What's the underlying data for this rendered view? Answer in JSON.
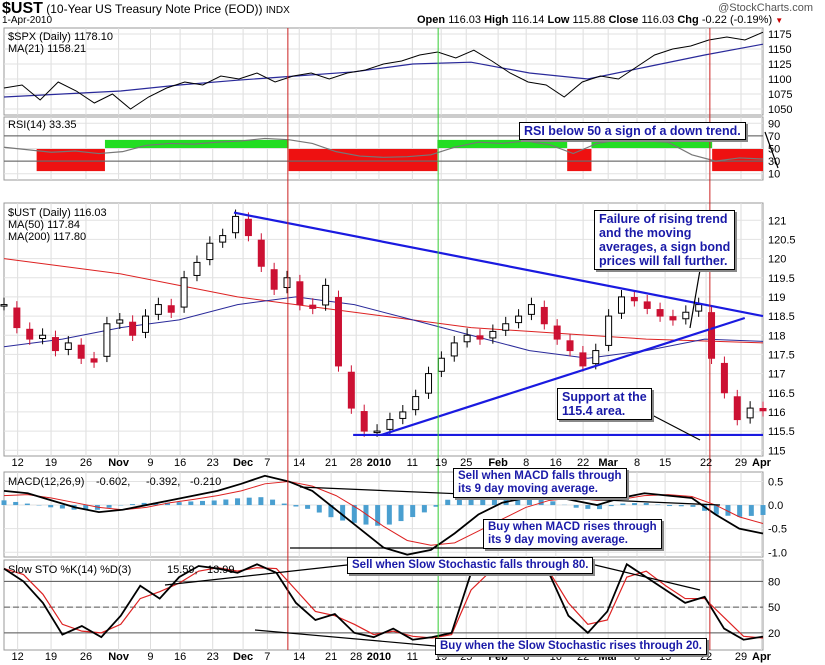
{
  "header": {
    "symbol": "$UST",
    "description": "(10-Year US Treasury Note Price (EOD))",
    "exchange": "INDX",
    "date": "1-Apr-2010",
    "watermark": "@StockCharts.com",
    "open_label": "Open",
    "open": "116.03",
    "high_label": "High",
    "high": "116.14",
    "low_label": "Low",
    "low": "115.88",
    "close_label": "Close",
    "close": "116.03",
    "chg_label": "Chg",
    "chg": "-0.22 (-0.19%)"
  },
  "colors": {
    "up": "#000000",
    "down": "#cc1133",
    "ma50": "#2a2a9a",
    "ma200": "#dd2222",
    "trend": "#1a1ae0",
    "rsi_up": "#22dd22",
    "rsi_down": "#ee1111",
    "macd_hist": "#4a9fd0",
    "vline_red": "#cc2222",
    "vline_green": "#33cc33"
  },
  "chart_data": [
    {
      "type": "line",
      "panel": "spx",
      "legend": [
        "$SPX (Daily) 1178.10",
        "MA(21) 1158.21"
      ],
      "yticks": [
        1175,
        1150,
        1125,
        1100,
        1075,
        1050
      ],
      "ylim": [
        1040,
        1185
      ],
      "series": [
        {
          "name": "$SPX",
          "values": [
            1085,
            1090,
            1065,
            1095,
            1080,
            1060,
            1075,
            1050,
            1070,
            1085,
            1095,
            1090,
            1105,
            1100,
            1110,
            1095,
            1105,
            1110,
            1100,
            1110,
            1115,
            1125,
            1130,
            1140,
            1145,
            1135,
            1148,
            1130,
            1110,
            1095,
            1090,
            1070,
            1095,
            1105,
            1100,
            1120,
            1140,
            1150,
            1155,
            1165,
            1170,
            1165,
            1178
          ]
        },
        {
          "name": "MA(21)",
          "values": [
            1070,
            1075,
            1080,
            1090,
            1098,
            1105,
            1112,
            1125,
            1128,
            1110,
            1100,
            1120,
            1140,
            1158
          ]
        }
      ]
    },
    {
      "type": "line",
      "panel": "rsi",
      "legend": "RSI(14) 33.35",
      "yticks": [
        90,
        70,
        50,
        30,
        10
      ],
      "ylim": [
        0,
        100
      ],
      "bands": [
        {
          "state": "down",
          "from": 0.043,
          "to": 0.133
        },
        {
          "state": "up",
          "from": 0.133,
          "to": 0.375
        },
        {
          "state": "down",
          "from": 0.375,
          "to": 0.571
        },
        {
          "state": "up",
          "from": 0.571,
          "to": 0.742
        },
        {
          "state": "down",
          "from": 0.742,
          "to": 0.774
        },
        {
          "state": "up",
          "from": 0.774,
          "to": 0.933
        },
        {
          "state": "down",
          "from": 0.933,
          "to": 1
        }
      ],
      "values": [
        52,
        48,
        44,
        46,
        42,
        45,
        55,
        58,
        57,
        60,
        62,
        66,
        64,
        58,
        45,
        38,
        36,
        37,
        40,
        52,
        60,
        58,
        62,
        56,
        42,
        58,
        64,
        62,
        60,
        40,
        30,
        35,
        33.35
      ]
    },
    {
      "type": "candlestick",
      "panel": "price",
      "legend": [
        "$UST (Daily) 116.03",
        "MA(50) 117.84",
        "MA(200) 117.80"
      ],
      "yticks": [
        121.0,
        120.5,
        120.0,
        119.5,
        119.0,
        118.5,
        118.0,
        117.5,
        117.0,
        116.5,
        116.0,
        115.5,
        115.0
      ],
      "ylim": [
        114.85,
        121.45
      ],
      "closes": [
        118.8,
        118.2,
        117.9,
        118.0,
        117.6,
        117.8,
        117.4,
        117.3,
        118.3,
        118.4,
        118.0,
        118.5,
        118.8,
        118.6,
        119.5,
        119.9,
        120.4,
        120.6,
        121.1,
        120.6,
        119.8,
        119.2,
        119.5,
        118.8,
        118.7,
        119.3,
        117.2,
        116.1,
        115.5,
        115.5,
        115.8,
        116.0,
        116.4,
        117.0,
        117.4,
        117.8,
        118.0,
        117.9,
        118.1,
        118.3,
        118.5,
        118.8,
        118.3,
        117.9,
        117.6,
        117.2,
        117.6,
        118.5,
        119.0,
        118.9,
        118.7,
        118.5,
        118.4,
        118.6,
        118.8,
        117.4,
        116.5,
        115.8,
        116.1,
        116.03
      ],
      "ma50": [
        117.7,
        117.9,
        118.2,
        118.4,
        118.8,
        119.0,
        118.8,
        118.4,
        118.0,
        117.6,
        117.4,
        117.6,
        117.9,
        117.84
      ],
      "ma200": [
        120.0,
        119.8,
        119.6,
        119.3,
        119.0,
        118.8,
        118.6,
        118.4,
        118.2,
        118.1,
        118.0,
        117.9,
        117.85,
        117.8
      ],
      "trendlines": [
        {
          "name": "falling-resistance",
          "from": [
            0.303,
            121.2
          ],
          "to": [
            1.0,
            118.5
          ]
        },
        {
          "name": "rising-support",
          "from": [
            0.497,
            115.4
          ],
          "to": [
            0.976,
            118.45
          ]
        },
        {
          "name": "support-115.4",
          "from": [
            0.46,
            115.4
          ],
          "to": [
            1.0,
            115.4
          ]
        }
      ]
    },
    {
      "type": "line",
      "panel": "macd",
      "legend": {
        "label": "MACD(12,26,9)",
        "macd": "-0.602,",
        "signal": "-0.392,",
        "hist": "-0.210"
      },
      "yticks": [
        "0.5",
        "0.0",
        "-0.5",
        "-1.0"
      ],
      "ylim": [
        -1.1,
        0.7
      ],
      "macd": [
        0.3,
        0.25,
        0.1,
        -0.05,
        -0.15,
        -0.1,
        0.0,
        0.1,
        0.2,
        0.3,
        0.45,
        0.62,
        0.5,
        0.3,
        -0.1,
        -0.5,
        -0.9,
        -1.05,
        -0.95,
        -0.6,
        -0.2,
        0.05,
        0.15,
        0.2,
        0.1,
        0.0,
        0.15,
        0.25,
        0.2,
        0.15,
        -0.2,
        -0.5,
        -0.602
      ],
      "signal": [
        0.2,
        0.22,
        0.15,
        0.05,
        -0.05,
        -0.1,
        -0.05,
        0.05,
        0.12,
        0.2,
        0.3,
        0.45,
        0.5,
        0.4,
        0.2,
        -0.1,
        -0.45,
        -0.75,
        -0.85,
        -0.8,
        -0.55,
        -0.3,
        -0.05,
        0.1,
        0.15,
        0.1,
        0.12,
        0.2,
        0.22,
        0.18,
        0.0,
        -0.25,
        -0.392
      ]
    },
    {
      "type": "line",
      "panel": "sto",
      "legend": {
        "label": "Slow STO %K(14) %D(3)",
        "k": "15.59,",
        "d": "13.99"
      },
      "yticks": [
        80,
        50,
        20
      ],
      "ylim": [
        0,
        105
      ],
      "k": [
        95,
        80,
        55,
        18,
        28,
        15,
        40,
        75,
        60,
        85,
        98,
        95,
        90,
        100,
        90,
        55,
        35,
        42,
        20,
        15,
        25,
        12,
        15,
        20,
        90,
        95,
        98,
        92,
        90,
        40,
        20,
        45,
        100,
        85,
        70,
        55,
        62,
        25,
        12,
        15.59
      ],
      "d": [
        95,
        88,
        65,
        30,
        22,
        20,
        30,
        60,
        68,
        78,
        92,
        96,
        92,
        96,
        95,
        70,
        45,
        40,
        30,
        18,
        22,
        16,
        14,
        18,
        70,
        92,
        96,
        95,
        92,
        55,
        30,
        35,
        85,
        92,
        75,
        60,
        60,
        38,
        16,
        13.99
      ]
    }
  ],
  "xaxis": {
    "ticks": [
      [
        "12",
        0.018
      ],
      [
        "19",
        0.062
      ],
      [
        "26",
        0.108
      ],
      [
        "Nov",
        0.151
      ],
      [
        "9",
        0.193
      ],
      [
        "16",
        0.232
      ],
      [
        "23",
        0.275
      ],
      [
        "Dec",
        0.315
      ],
      [
        "7",
        0.347
      ],
      [
        "14",
        0.389
      ],
      [
        "21",
        0.431
      ],
      [
        "28",
        0.464
      ],
      [
        "2010",
        0.494
      ],
      [
        "11",
        0.538
      ],
      [
        "19",
        0.576
      ],
      [
        "25",
        0.609
      ],
      [
        "Feb",
        0.651
      ],
      [
        "8",
        0.688
      ],
      [
        "16",
        0.727
      ],
      [
        "22",
        0.763
      ],
      [
        "Mar",
        0.796
      ],
      [
        "8",
        0.834
      ],
      [
        "15",
        0.871
      ],
      [
        "22",
        0.925
      ],
      [
        "29",
        0.971
      ],
      [
        "Apr",
        0.998
      ]
    ],
    "bold": [
      "Nov",
      "Dec",
      "2010",
      "Feb",
      "Mar",
      "Apr"
    ]
  },
  "vlines": [
    {
      "color": "red",
      "pos": 0.374
    },
    {
      "color": "green",
      "pos": 0.572
    },
    {
      "color": "red",
      "pos": 0.93
    }
  ],
  "annotations": {
    "rsi": "RSI below 50 a sign of a down trend.",
    "failure": "Failure of rising trend\nand the moving\naverages, a sign bond\nprices will fall further.",
    "support": "Support at the\n115.4 area.",
    "macd_sell": "Sell when MACD falls through\nits 9 day moving average.",
    "macd_buy": "Buy when MACD rises through\nits 9 day moving average.",
    "sto_sell": "Sell when Slow Stochastic falls through 80.",
    "sto_buy": "Buy when the Slow Stochastic rises through 20."
  }
}
